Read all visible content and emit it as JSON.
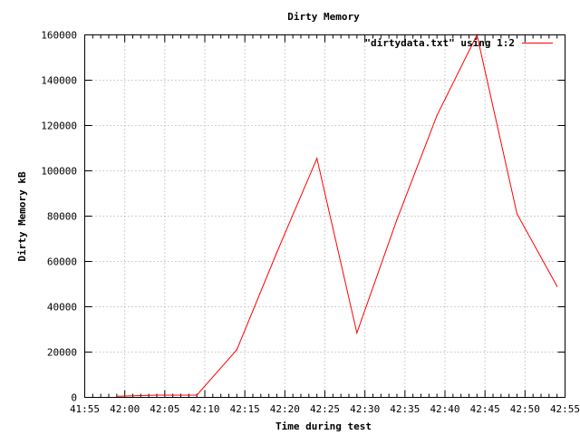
{
  "chart_data": {
    "type": "line",
    "title": "Dirty Memory",
    "xlabel": "Time during test",
    "ylabel": "Dirty Memory kB",
    "xlim": [
      "41:55",
      "42:55"
    ],
    "ylim": [
      0,
      160000
    ],
    "x_ticks": [
      "41:55",
      "42:00",
      "42:05",
      "42:10",
      "42:15",
      "42:20",
      "42:25",
      "42:30",
      "42:35",
      "42:40",
      "42:45",
      "42:50",
      "42:55"
    ],
    "y_ticks": [
      0,
      20000,
      40000,
      60000,
      80000,
      100000,
      120000,
      140000,
      160000
    ],
    "grid": true,
    "legend": "top-right",
    "series": [
      {
        "name": "\"dirtydata.txt\" using 1:2",
        "color": "#ff0000",
        "x": [
          "41:59",
          "42:04",
          "42:09",
          "42:14",
          "42:19",
          "42:24",
          "42:29",
          "42:34",
          "42:39",
          "42:44",
          "42:49",
          "42:54"
        ],
        "y": [
          500,
          1000,
          1000,
          21000,
          64000,
          105500,
          28500,
          78500,
          124500,
          160000,
          81000,
          49000
        ]
      }
    ]
  }
}
